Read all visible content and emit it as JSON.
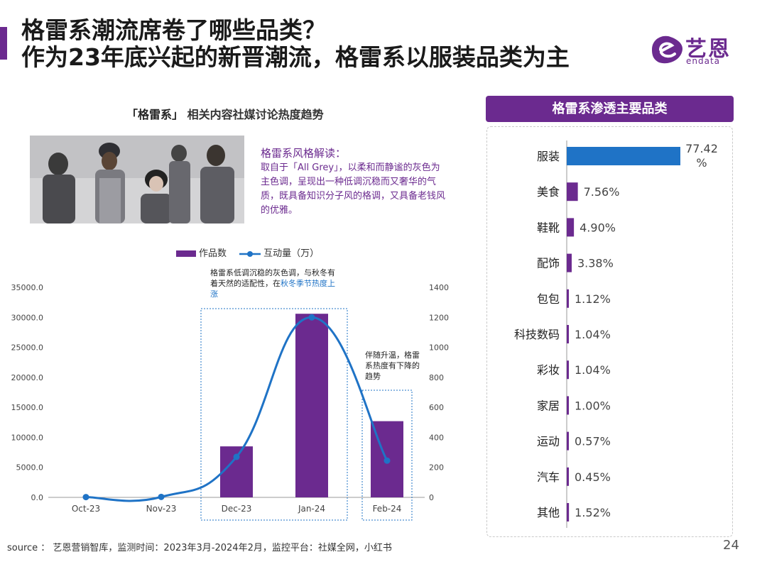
{
  "header": {
    "title_line1": "格雷系潮流席卷了哪些品类？",
    "title_line2": "作为23年底兴起的新晋潮流，格雷系以服装品类为主",
    "logo_text": "艺恩",
    "logo_sub": "endata"
  },
  "left_panel": {
    "title_bracket": "「格雷系」",
    "title_rest": "相关内容社媒讨论热度趋势",
    "style_title": "格雷系风格解读：",
    "style_desc": "取自于「All Grey」，以柔和而静谧的灰色为主色调，呈现出一种低调沉稳而又奢华的气质，既具备知识分子风的格调，又具备老钱风的优雅。",
    "note1_main": "格雷系低调沉稳的灰色调，与秋冬有着天然的适配性，在",
    "note1_highlight": "秋冬季节热度上涨",
    "note2": "伴随升温，格雷系热度有下降的趋势"
  },
  "chart_data": [
    {
      "type": "bar+line",
      "categories": [
        "Oct-23",
        "Nov-23",
        "Dec-23",
        "Jan-24",
        "Feb-24"
      ],
      "series": [
        {
          "name": "作品数",
          "type": "bar",
          "axis": "left",
          "values": [
            0,
            0,
            8500,
            30600,
            12700
          ]
        },
        {
          "name": "互动量（万）",
          "type": "line",
          "axis": "right",
          "values": [
            2,
            3,
            270,
            1200,
            245
          ]
        }
      ],
      "y_left": {
        "lim": [
          0,
          35000
        ],
        "ticks": [
          "0.0",
          "5000.0",
          "10000.0",
          "15000.0",
          "20000.0",
          "25000.0",
          "30000.0",
          "35000.0"
        ]
      },
      "y_right": {
        "lim": [
          0,
          1400
        ],
        "ticks": [
          "0",
          "200",
          "400",
          "600",
          "800",
          "1000",
          "1200",
          "1400"
        ]
      },
      "legend_position": "top",
      "colors": {
        "bar": "#6b2a8f",
        "line": "#1f73c6"
      }
    },
    {
      "type": "bar",
      "orientation": "horizontal",
      "title": "格雷系渗透主要品类",
      "categories": [
        "服装",
        "美食",
        "鞋靴",
        "配饰",
        "包包",
        "科技数码",
        "彩妆",
        "家居",
        "运动",
        "汽车",
        "其他"
      ],
      "values": [
        77.42,
        7.56,
        4.9,
        3.38,
        1.12,
        1.04,
        1.04,
        1.0,
        0.57,
        0.45,
        1.52
      ],
      "labels": [
        "77.42\n%",
        "7.56%",
        "4.90%",
        "3.38%",
        "1.12%",
        "1.04%",
        "1.04%",
        "1.00%",
        "0.57%",
        "0.45%",
        "1.52%"
      ],
      "colors": {
        "top": "#1f73c6",
        "rest": "#6b2a8f"
      }
    }
  ],
  "footer": {
    "source": "source ： 艺恩营销智库，监测时间：2023年3月-2024年2月，监控平台：社媒全网，小红书",
    "page": "24"
  }
}
